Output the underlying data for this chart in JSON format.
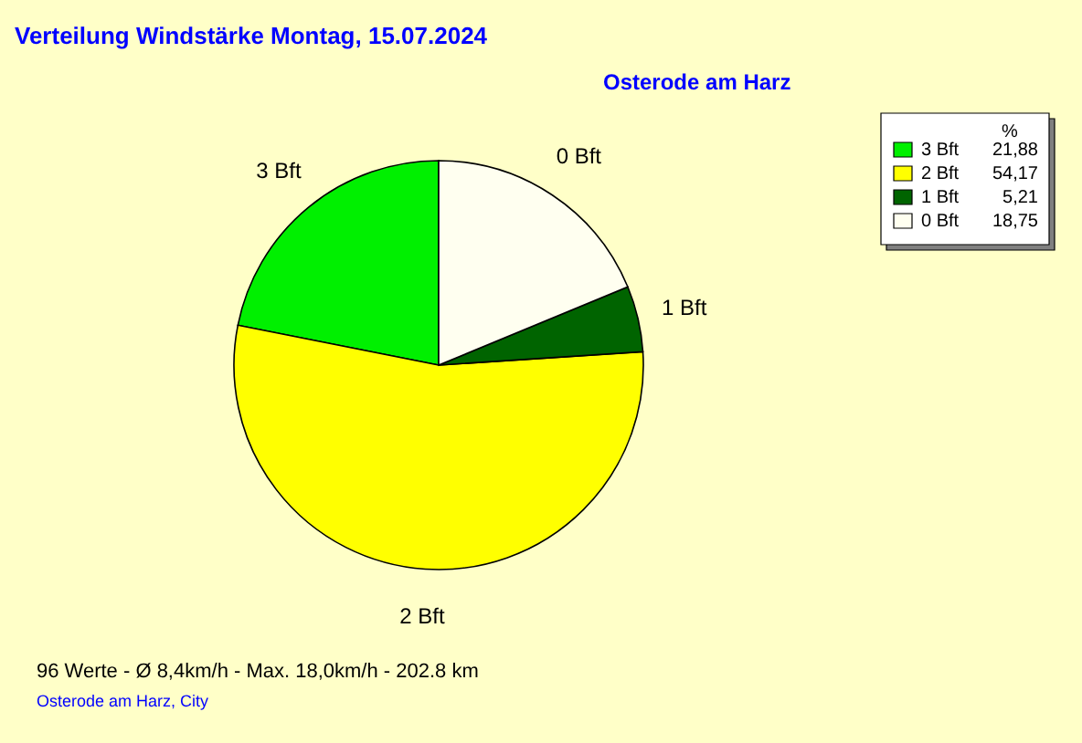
{
  "chart_data": {
    "type": "pie",
    "title": "Verteilung Windstärke  Montag, 15.07.2024",
    "subtitle": "Osterode am Harz",
    "legend_title": "%",
    "legend": "top right",
    "categories": [
      "3 Bft",
      "2 Bft",
      "1 Bft",
      "0 Bft"
    ],
    "values": [
      21.88,
      54.17,
      5.21,
      18.75
    ],
    "value_labels": [
      "21,88",
      "54,17",
      "5,21",
      "18,75"
    ],
    "colors": [
      "#00f000",
      "#ffff00",
      "#006400",
      "#fffff0"
    ],
    "annotations": [
      "96 Werte   -   Ø 8,4km/h  -  Max. 18,0km/h   -   202.8 km",
      "Osterode am Harz, City"
    ]
  }
}
